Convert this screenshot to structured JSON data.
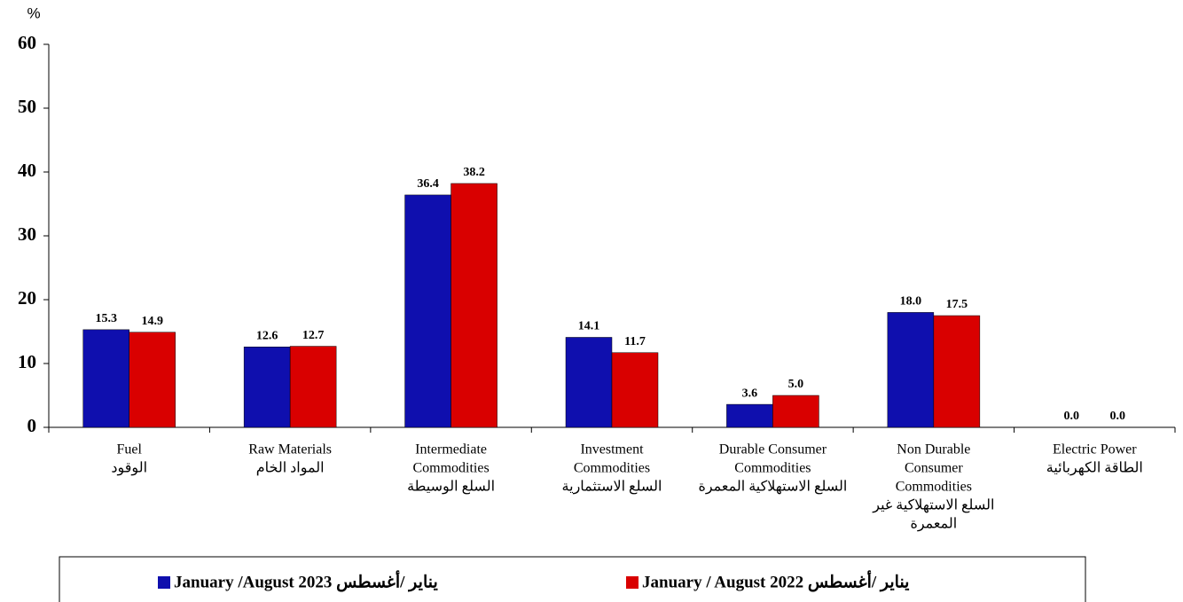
{
  "chart_data": {
    "type": "bar",
    "y_label": "%",
    "categories": [
      [
        "Fuel",
        "الوقود"
      ],
      [
        "Raw Materials",
        "المواد الخام"
      ],
      [
        "Intermediate",
        "Commodities",
        "السلع الوسيطة"
      ],
      [
        "Investment",
        "Commodities",
        "السلع الاستثمارية"
      ],
      [
        "Durable Consumer",
        "Commodities",
        "السلع الاستهلاكية المعمرة"
      ],
      [
        "Non Durable",
        "Consumer",
        "Commodities",
        "السلع الاستهلاكية غير",
        "المعمرة"
      ],
      [
        "Electric Power",
        "الطاقة الكهربائية"
      ]
    ],
    "series": [
      {
        "name": "January /August 2023    يناير /أغسطس",
        "color": "#0f0fae",
        "values": [
          15.3,
          12.6,
          36.4,
          14.1,
          3.6,
          18.0,
          0
        ],
        "value_labels": [
          "15.3",
          "12.6",
          "36.4",
          "14.1",
          "3.6",
          "18.0",
          "0.0"
        ]
      },
      {
        "name": "January / August  2022  يناير /أغسطس",
        "color": "#d90000",
        "values": [
          14.9,
          12.7,
          38.2,
          11.7,
          5.0,
          17.5,
          0
        ],
        "value_labels": [
          "14.9",
          "12.7",
          "38.2",
          "11.7",
          "5.0",
          "17.5",
          "0.0"
        ]
      }
    ],
    "ylim": [
      0,
      60
    ],
    "yticks": [
      0,
      10,
      20,
      30,
      40,
      50,
      60
    ]
  }
}
